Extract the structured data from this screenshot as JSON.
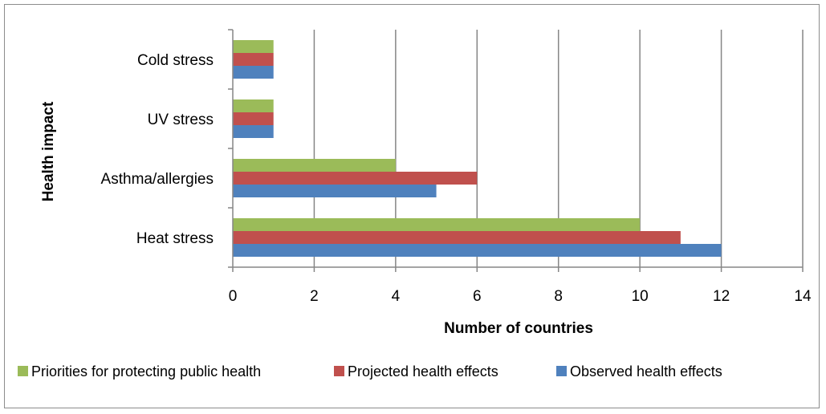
{
  "chart_data": {
    "type": "bar",
    "orientation": "horizontal",
    "categories": [
      "Heat stress",
      "Asthma/allergies",
      "UV stress",
      "Cold stress"
    ],
    "series": [
      {
        "name": "Observed health effects",
        "color": "#4f81bd",
        "values": [
          12,
          5,
          1,
          1
        ]
      },
      {
        "name": "Projected health effects",
        "color": "#c0504d",
        "values": [
          11,
          6,
          1,
          1
        ]
      },
      {
        "name": "Priorities for protecting public health",
        "color": "#9bbb59",
        "values": [
          10,
          4,
          1,
          1
        ]
      }
    ],
    "xlabel": "Number of countries",
    "ylabel": "Health impact",
    "xlim": [
      0,
      14
    ],
    "xticks": [
      "0",
      "2",
      "4",
      "6",
      "8",
      "10",
      "12",
      "14"
    ],
    "grid": "vertical major gridlines",
    "legend": {
      "placement": "bottom-left",
      "order": [
        "Priorities for protecting public health",
        "Projected health effects",
        "Observed health effects"
      ]
    }
  }
}
